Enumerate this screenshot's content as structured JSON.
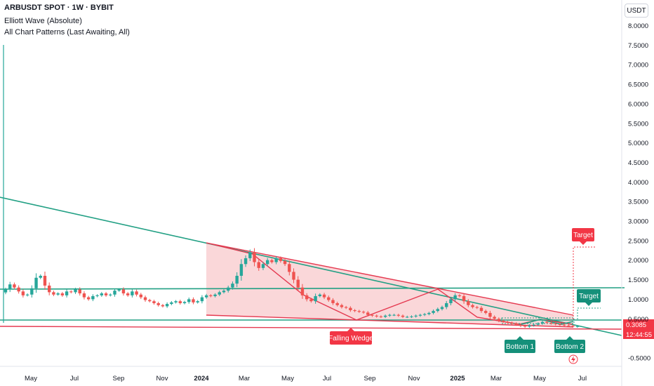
{
  "header": {
    "symbol_line": "ARBUSDT SPOT · 1W · BYBIT",
    "indicator_1": "Elliott Wave (Absolute)",
    "indicator_2": "All Chart Patterns (Last Awaiting, All)"
  },
  "currency_button": "USDT",
  "colors": {
    "up": "#26a69a",
    "down": "#ef5350",
    "pattern_fill": "#f8c9cc",
    "pattern_line": "#e53950",
    "trend_line": "#22a084",
    "label_red": "#f23645",
    "label_green": "#15907a"
  },
  "chart_data": {
    "type": "candlestick",
    "title": "ARBUSDT SPOT · 1W · BYBIT",
    "xlabel": "",
    "ylabel": "",
    "y_ticks": [
      "8.0000",
      "7.5000",
      "7.0000",
      "6.5000",
      "6.0000",
      "5.5000",
      "5.0000",
      "4.5000",
      "4.0000",
      "3.5000",
      "3.0000",
      "2.5000",
      "2.0000",
      "1.5000",
      "1.0000",
      "0.5000",
      "-0.5000"
    ],
    "ylim": [
      -0.55,
      8.25
    ],
    "x_ticks": [
      "May",
      "Jul",
      "Sep",
      "Nov",
      "2024",
      "Mar",
      "May",
      "Jul",
      "Sep",
      "Nov",
      "2025",
      "Mar",
      "May",
      "Jul"
    ],
    "grid": false,
    "legend": "none",
    "current_price": "0.3085",
    "countdown": "12:44:55",
    "series_close": [
      1.25,
      1.38,
      1.3,
      1.2,
      1.1,
      1.12,
      1.28,
      1.55,
      1.6,
      1.35,
      1.18,
      1.12,
      1.15,
      1.1,
      1.2,
      1.18,
      1.25,
      1.15,
      1.05,
      1.0,
      1.08,
      1.1,
      1.15,
      1.1,
      1.12,
      1.22,
      1.25,
      1.15,
      1.1,
      1.2,
      1.12,
      1.05,
      0.98,
      0.95,
      0.9,
      0.85,
      0.82,
      0.88,
      0.92,
      0.95,
      0.9,
      0.93,
      1.0,
      0.92,
      0.95,
      1.05,
      1.1,
      1.08,
      1.12,
      1.18,
      1.22,
      1.3,
      1.4,
      1.6,
      1.9,
      2.05,
      2.2,
      1.95,
      1.8,
      1.9,
      2.0,
      1.95,
      2.05,
      1.98,
      1.9,
      1.7,
      1.5,
      1.3,
      1.1,
      1.0,
      0.95,
      1.08,
      1.12,
      1.05,
      0.98,
      0.9,
      0.85,
      0.8,
      0.78,
      0.72,
      0.7,
      0.68,
      0.66,
      0.6,
      0.58,
      0.56,
      0.55,
      0.58,
      0.6,
      0.6,
      0.58,
      0.55,
      0.55,
      0.56,
      0.58,
      0.6,
      0.62,
      0.65,
      0.7,
      0.75,
      0.8,
      0.9,
      1.0,
      1.1,
      1.08,
      0.95,
      0.85,
      0.8,
      0.78,
      0.7,
      0.65,
      0.55,
      0.5,
      0.45,
      0.42,
      0.4,
      0.38,
      0.35,
      0.32,
      0.3,
      0.33,
      0.35,
      0.38,
      0.42,
      0.4,
      0.38,
      0.36,
      0.35,
      0.33,
      0.32,
      0.3,
      0.31
    ],
    "patterns": [
      {
        "label": "Falling Wedge"
      },
      {
        "label": "Target"
      },
      {
        "label": "Target"
      },
      {
        "label": "Bottom 1"
      },
      {
        "label": "Bottom 2"
      }
    ]
  }
}
